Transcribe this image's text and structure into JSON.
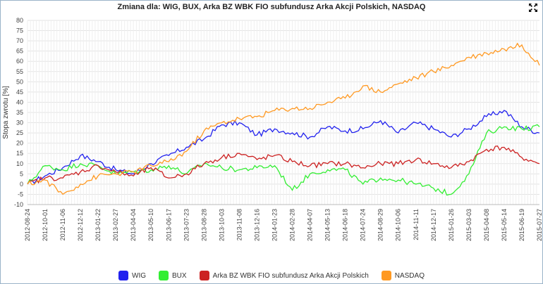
{
  "header": {
    "title": "Zmiana dla: WIG, BUX, Arka BZ WBK FIO subfundusz Arka Akcji Polskich, NASDAQ"
  },
  "toolbar": {
    "expand_icon": "fullscreen-expand-icon"
  },
  "chart_data": {
    "type": "line",
    "title": "Zmiana dla: WIG, BUX, Arka BZ WBK FIO subfundusz Arka Akcji Polskich, NASDAQ",
    "xlabel": "",
    "ylabel": "Stopa zwrotu [%]",
    "ylim": [
      -10,
      80
    ],
    "yticks": [
      -10,
      -5,
      0,
      5,
      10,
      15,
      20,
      25,
      30,
      35,
      40,
      45,
      50,
      55,
      60,
      65,
      70,
      75,
      80
    ],
    "grid": true,
    "legend_position": "bottom",
    "categories": [
      "2012-08-24",
      "2012-10-01",
      "2012-11-06",
      "2012-12-12",
      "2013-01-22",
      "2013-02-27",
      "2013-04-04",
      "2013-05-10",
      "2013-06-17",
      "2013-07-23",
      "2013-08-28",
      "2013-10-03",
      "2013-11-08",
      "2013-12-16",
      "2014-01-23",
      "2014-02-28",
      "2014-04-07",
      "2014-05-13",
      "2014-06-18",
      "2014-07-24",
      "2014-08-29",
      "2014-10-06",
      "2014-11-11",
      "2014-12-17",
      "2015-01-26",
      "2015-03-03",
      "2015-04-08",
      "2015-05-14",
      "2015-06-19",
      "2015-07-27"
    ],
    "series": [
      {
        "name": "WIG",
        "color": "#2222ee",
        "values": [
          0,
          4,
          8,
          14,
          11,
          7,
          5,
          10,
          14,
          18,
          22,
          29,
          30,
          24,
          27,
          25,
          23,
          28,
          26,
          27,
          31,
          25,
          30,
          27,
          23,
          27,
          33,
          36,
          28,
          25
        ]
      },
      {
        "name": "BUX",
        "color": "#33ee33",
        "values": [
          0,
          9,
          7,
          10,
          9,
          5,
          6,
          7,
          9,
          5,
          10,
          8,
          7,
          8,
          9,
          -3,
          5,
          7,
          7,
          0,
          3,
          2,
          0,
          -2,
          -5,
          5,
          25,
          28,
          27,
          28
        ]
      },
      {
        "name": "Arka BZ WBK FIO subfundusz Arka Akcji Polskich",
        "color": "#cc2222",
        "values": [
          0,
          3,
          3,
          6,
          9,
          6,
          4,
          8,
          3,
          5,
          10,
          13,
          15,
          12,
          14,
          11,
          9,
          10,
          10,
          8,
          10,
          10,
          12,
          10,
          8,
          11,
          17,
          18,
          13,
          10
        ]
      },
      {
        "name": "NASDAQ",
        "color": "#ff9922",
        "values": [
          0,
          2,
          -5,
          0,
          4,
          5,
          6,
          9,
          11,
          16,
          26,
          30,
          32,
          33,
          36,
          37,
          37,
          40,
          42,
          48,
          45,
          49,
          52,
          55,
          58,
          62,
          64,
          66,
          68,
          58
        ]
      }
    ]
  }
}
